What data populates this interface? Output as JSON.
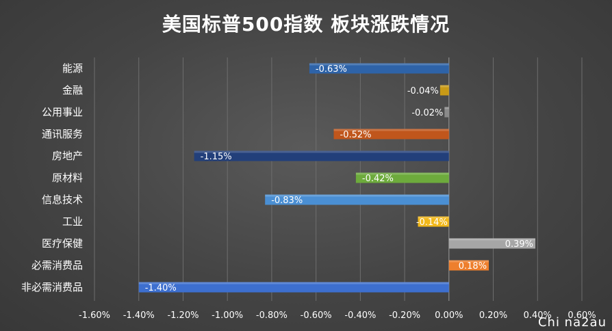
{
  "chart_data": {
    "type": "bar",
    "orientation": "horizontal",
    "title": "美国标普500指数 板块涨跌情况",
    "xlabel": "",
    "ylabel": "",
    "xlim": [
      -0.016,
      0.006
    ],
    "grid": true,
    "legend": "none",
    "categories": [
      "能源",
      "金融",
      "公用事业",
      "通讯服务",
      "房地产",
      "原材料",
      "信息技术",
      "工业",
      "医疗保健",
      "必需消费品",
      "非必需消费品"
    ],
    "values": [
      -0.0063,
      -0.0004,
      -0.0002,
      -0.0052,
      -0.0115,
      -0.0042,
      -0.0083,
      -0.0014,
      0.0039,
      0.0018,
      -0.014
    ],
    "data_labels": [
      "-0.63%",
      "-0.04%",
      "-0.02%",
      "-0.52%",
      "-1.15%",
      "-0.42%",
      "-0.83%",
      "-0.14%",
      "0.39%",
      "0.18%",
      "-1.40%"
    ],
    "colors": [
      "#2e63a8",
      "#c99a16",
      "#8a8a8a",
      "#c0561c",
      "#223f7a",
      "#6dab3c",
      "#4a8fd4",
      "#f2b81a",
      "#a6a6a6",
      "#ee7f2d",
      "#3d6fcf"
    ],
    "x_ticks": [
      -0.016,
      -0.014,
      -0.012,
      -0.01,
      -0.008,
      -0.006,
      -0.004,
      -0.002,
      0,
      0.002,
      0.004,
      0.006
    ],
    "x_tick_labels": [
      "-1.60%",
      "-1.40%",
      "-1.20%",
      "-1.00%",
      "-0.80%",
      "-0.60%",
      "-0.40%",
      "-0.20%",
      "0.00%",
      "0.20%",
      "0.40%",
      "0.60%"
    ]
  },
  "watermark": "Chi na2au"
}
